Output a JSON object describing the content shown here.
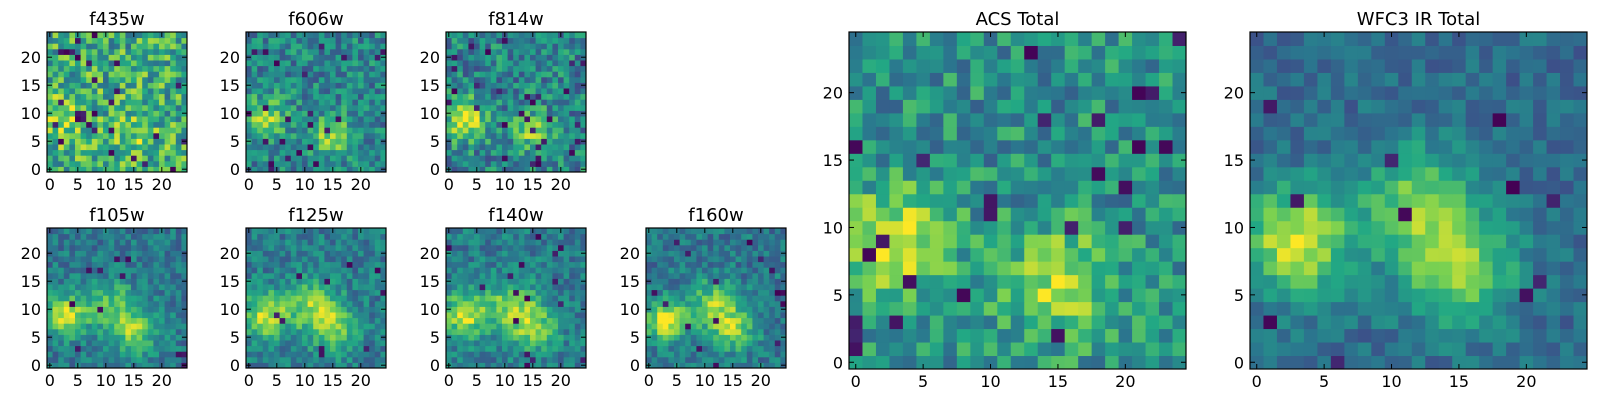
{
  "figure": {
    "colormap": "viridis",
    "colormap_stops": [
      "#440154",
      "#414487",
      "#2a788e",
      "#22a884",
      "#7ad151",
      "#fde725"
    ]
  },
  "chart_data": [
    {
      "type": "heatmap",
      "title": "f435w",
      "grid_size": 25,
      "seed": 11,
      "x_ticks": [
        "0",
        "5",
        "10",
        "15",
        "20"
      ],
      "y_ticks": [
        "0",
        "5",
        "10",
        "15",
        "20"
      ],
      "xlim": [
        0,
        25
      ],
      "ylim": [
        0,
        25
      ],
      "noise": 0.55,
      "base": 0.62,
      "dark_fraction": 0.04,
      "blobs": [
        {
          "x": 3,
          "y": 9,
          "amp": 0.25,
          "sigma": 3
        },
        {
          "x": 15,
          "y": 6,
          "amp": 0.15,
          "sigma": 3
        }
      ]
    },
    {
      "type": "heatmap",
      "title": "f606w",
      "grid_size": 25,
      "seed": 23,
      "x_ticks": [
        "0",
        "5",
        "10",
        "15",
        "20"
      ],
      "y_ticks": [
        "0",
        "5",
        "10",
        "15",
        "20"
      ],
      "xlim": [
        0,
        25
      ],
      "ylim": [
        0,
        25
      ],
      "noise": 0.4,
      "base": 0.45,
      "dark_fraction": 0.03,
      "blobs": [
        {
          "x": 3,
          "y": 9,
          "amp": 0.35,
          "sigma": 2.8
        },
        {
          "x": 15,
          "y": 6,
          "amp": 0.4,
          "sigma": 2.5
        }
      ]
    },
    {
      "type": "heatmap",
      "title": "f814w",
      "grid_size": 25,
      "seed": 37,
      "x_ticks": [
        "0",
        "5",
        "10",
        "15",
        "20"
      ],
      "y_ticks": [
        "0",
        "5",
        "10",
        "15",
        "20"
      ],
      "xlim": [
        0,
        25
      ],
      "ylim": [
        0,
        25
      ],
      "noise": 0.45,
      "base": 0.45,
      "dark_fraction": 0.04,
      "blobs": [
        {
          "x": 3,
          "y": 9,
          "amp": 0.5,
          "sigma": 2.5
        },
        {
          "x": 15,
          "y": 7,
          "amp": 0.35,
          "sigma": 2.5
        }
      ]
    },
    {
      "type": "heatmap",
      "title": "f105w",
      "grid_size": 25,
      "seed": 41,
      "x_ticks": [
        "0",
        "5",
        "10",
        "15",
        "20"
      ],
      "y_ticks": [
        "0",
        "5",
        "10",
        "15",
        "20"
      ],
      "xlim": [
        0,
        25
      ],
      "ylim": [
        0,
        25
      ],
      "noise": 0.3,
      "base": 0.4,
      "dark_fraction": 0.02,
      "blobs": [
        {
          "x": 3,
          "y": 9,
          "amp": 0.55,
          "sigma": 2.5
        },
        {
          "x": 11,
          "y": 11,
          "amp": 0.3,
          "sigma": 3
        },
        {
          "x": 15,
          "y": 6,
          "amp": 0.4,
          "sigma": 3
        }
      ]
    },
    {
      "type": "heatmap",
      "title": "f125w",
      "grid_size": 25,
      "seed": 53,
      "x_ticks": [
        "0",
        "5",
        "10",
        "15",
        "20"
      ],
      "y_ticks": [
        "0",
        "5",
        "10",
        "15",
        "20"
      ],
      "xlim": [
        0,
        25
      ],
      "ylim": [
        0,
        25
      ],
      "noise": 0.3,
      "base": 0.42,
      "dark_fraction": 0.02,
      "blobs": [
        {
          "x": 3,
          "y": 9,
          "amp": 0.5,
          "sigma": 2.8
        },
        {
          "x": 11,
          "y": 11,
          "amp": 0.35,
          "sigma": 3
        },
        {
          "x": 15,
          "y": 7,
          "amp": 0.4,
          "sigma": 3
        }
      ]
    },
    {
      "type": "heatmap",
      "title": "f140w",
      "grid_size": 25,
      "seed": 67,
      "x_ticks": [
        "0",
        "5",
        "10",
        "15",
        "20"
      ],
      "y_ticks": [
        "0",
        "5",
        "10",
        "15",
        "20"
      ],
      "xlim": [
        0,
        25
      ],
      "ylim": [
        0,
        25
      ],
      "noise": 0.3,
      "base": 0.42,
      "dark_fraction": 0.02,
      "blobs": [
        {
          "x": 3,
          "y": 9,
          "amp": 0.5,
          "sigma": 2.8
        },
        {
          "x": 11,
          "y": 11,
          "amp": 0.35,
          "sigma": 3
        },
        {
          "x": 15,
          "y": 7,
          "amp": 0.4,
          "sigma": 3
        }
      ]
    },
    {
      "type": "heatmap",
      "title": "f160w",
      "grid_size": 25,
      "seed": 71,
      "x_ticks": [
        "0",
        "5",
        "10",
        "15",
        "20"
      ],
      "y_ticks": [
        "0",
        "5",
        "10",
        "15",
        "20"
      ],
      "xlim": [
        0,
        25
      ],
      "ylim": [
        0,
        25
      ],
      "noise": 0.3,
      "base": 0.4,
      "dark_fraction": 0.02,
      "blobs": [
        {
          "x": 3,
          "y": 8,
          "amp": 0.55,
          "sigma": 2.5
        },
        {
          "x": 11,
          "y": 11,
          "amp": 0.35,
          "sigma": 3
        },
        {
          "x": 15,
          "y": 7,
          "amp": 0.4,
          "sigma": 3
        }
      ]
    },
    {
      "type": "heatmap",
      "title": "ACS Total",
      "grid_size": 25,
      "seed": 83,
      "x_ticks": [
        "0",
        "5",
        "10",
        "15",
        "20"
      ],
      "y_ticks": [
        "0",
        "5",
        "10",
        "15",
        "20"
      ],
      "xlim": [
        0,
        25
      ],
      "ylim": [
        0,
        25
      ],
      "noise": 0.4,
      "base": 0.5,
      "dark_fraction": 0.04,
      "blobs": [
        {
          "x": 3,
          "y": 9,
          "amp": 0.45,
          "sigma": 2.8
        },
        {
          "x": 15,
          "y": 6,
          "amp": 0.4,
          "sigma": 2.8
        }
      ]
    },
    {
      "type": "heatmap",
      "title": "WFC3 IR Total",
      "grid_size": 25,
      "seed": 97,
      "x_ticks": [
        "0",
        "5",
        "10",
        "15",
        "20"
      ],
      "y_ticks": [
        "0",
        "5",
        "10",
        "15",
        "20"
      ],
      "xlim": [
        0,
        25
      ],
      "ylim": [
        0,
        25
      ],
      "noise": 0.22,
      "base": 0.35,
      "dark_fraction": 0.02,
      "blobs": [
        {
          "x": 3,
          "y": 9,
          "amp": 0.6,
          "sigma": 2.8
        },
        {
          "x": 12,
          "y": 12,
          "amp": 0.4,
          "sigma": 3
        },
        {
          "x": 15,
          "y": 7,
          "amp": 0.45,
          "sigma": 3
        }
      ]
    }
  ]
}
